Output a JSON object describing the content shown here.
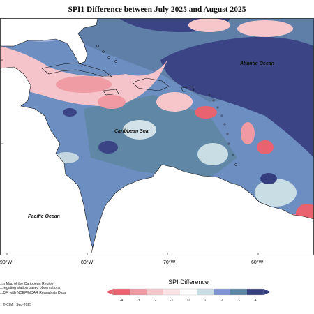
{
  "title": "SPI1 Difference between July 2025 and August 2025",
  "map": {
    "labels": {
      "atlantic": "Atlantic Ocean",
      "caribbean": "Caribbean Sea",
      "pacific": "Pacific Ocean"
    },
    "longitudes": [
      "90°W",
      "80°W",
      "70°W",
      "60°W"
    ]
  },
  "legend": {
    "title": "SPI Difference",
    "ticks": [
      "-4",
      "-3",
      "-2",
      "-1",
      "0",
      "1",
      "2",
      "3",
      "4"
    ],
    "colors": [
      "#e8626f",
      "#f29aa3",
      "#f7c6cb",
      "#fbe3e6",
      "#ffffff",
      "#c9dde4",
      "#7f92d6",
      "#5a86a8",
      "#353f7f"
    ]
  },
  "credit": {
    "line1": "...n Map of the Caribbean Region",
    "line2": "...regating station based observations,",
    "line3": "...DF, with NCEP/NCAR Reanalysis Data."
  },
  "copyright": "© CIMH Sep-2025"
}
